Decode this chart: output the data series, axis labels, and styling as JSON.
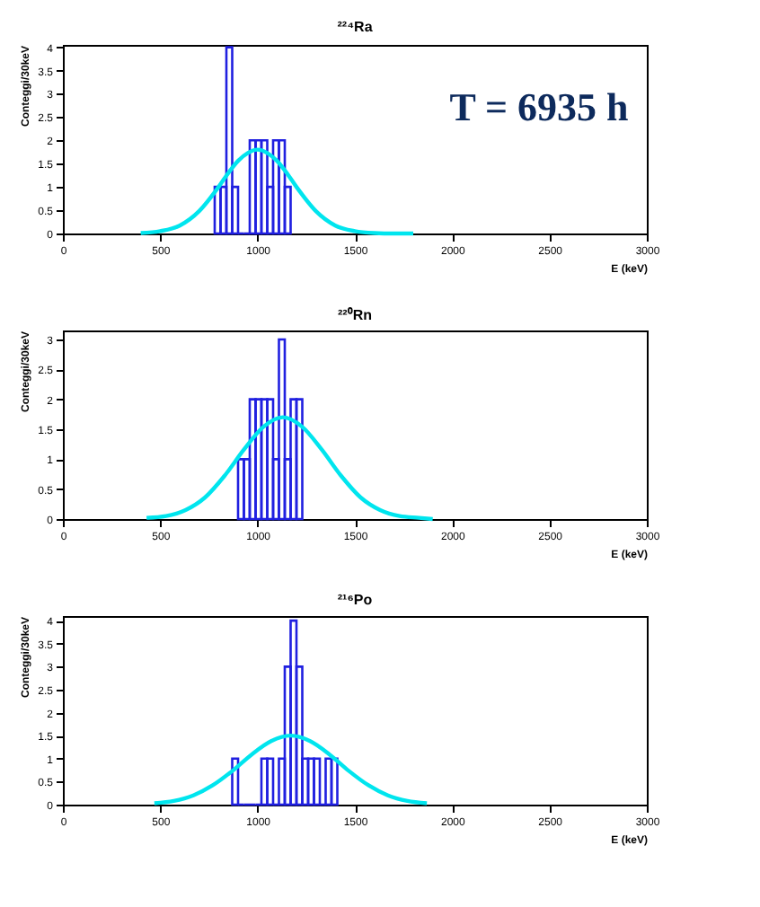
{
  "chart_data": [
    {
      "type": "histogram",
      "title": "²²⁴Ra",
      "xlabel": "E (keV)",
      "ylabel": "Conteggi/30keV",
      "color": "#2020e0",
      "bins": [
        780,
        810,
        840,
        870,
        900,
        930,
        960,
        990,
        1020,
        1050,
        1080,
        1110,
        1140,
        1170
      ],
      "values": [
        1,
        1,
        4,
        1,
        0,
        0,
        2,
        2,
        2,
        1,
        2,
        2,
        1
      ],
      "series": [
        {
          "type": "line",
          "color": "#00e5ee",
          "x": [
            400,
            500,
            600,
            700,
            800,
            850,
            900,
            950,
            1000,
            1050,
            1100,
            1150,
            1200,
            1300,
            1400,
            1500,
            1600,
            1700,
            1800
          ],
          "values": [
            0.01,
            0.05,
            0.17,
            0.48,
            1.0,
            1.3,
            1.56,
            1.73,
            1.8,
            1.73,
            1.56,
            1.3,
            1.0,
            0.48,
            0.17,
            0.05,
            0.01,
            0,
            0
          ]
        }
      ],
      "xlim": [
        0,
        3000
      ],
      "xticks": [
        0,
        500,
        1000,
        1500,
        2000,
        2500,
        3000
      ],
      "ylim": [
        0,
        4.05
      ],
      "yticks": [
        0,
        0.5,
        1,
        1.5,
        2,
        2.5,
        3,
        3.5,
        4
      ],
      "annotations": [
        "T = 6935 h"
      ]
    },
    {
      "type": "histogram",
      "title": "²²⁰Rn",
      "xlabel": "E (keV)",
      "ylabel": "Conteggi/30keV",
      "color": "#2020e0",
      "bins": [
        900,
        930,
        960,
        990,
        1020,
        1050,
        1080,
        1110,
        1140,
        1170,
        1200,
        1230
      ],
      "values": [
        1,
        1,
        2,
        2,
        2,
        2,
        1,
        3,
        1,
        2,
        2
      ],
      "series": [
        {
          "type": "line",
          "color": "#00e5ee",
          "x": [
            430,
            530,
            630,
            730,
            830,
            930,
            1030,
            1130,
            1230,
            1330,
            1430,
            1530,
            1630,
            1730,
            1830,
            1900
          ],
          "values": [
            0.02,
            0.05,
            0.15,
            0.36,
            0.72,
            1.16,
            1.54,
            1.7,
            1.54,
            1.16,
            0.72,
            0.36,
            0.15,
            0.05,
            0.02,
            0
          ]
        }
      ],
      "xlim": [
        0,
        3000
      ],
      "xticks": [
        0,
        500,
        1000,
        1500,
        2000,
        2500,
        3000
      ],
      "ylim": [
        0,
        3.15
      ],
      "yticks": [
        0,
        0.5,
        1,
        1.5,
        2,
        2.5,
        3
      ]
    },
    {
      "type": "histogram",
      "title": "²¹⁶Po",
      "xlabel": "E (keV)",
      "ylabel": "Conteggi/30keV",
      "color": "#2020e0",
      "bins": [
        870,
        900,
        930,
        960,
        990,
        1020,
        1050,
        1080,
        1110,
        1140,
        1170,
        1200,
        1230,
        1260,
        1290,
        1320,
        1350,
        1380,
        1410
      ],
      "values": [
        1,
        0,
        0,
        0,
        0,
        1,
        1,
        0,
        1,
        3,
        4,
        3,
        1,
        1,
        1,
        0,
        1,
        1
      ],
      "series": [
        {
          "type": "line",
          "color": "#00e5ee",
          "x": [
            470,
            570,
            670,
            770,
            870,
            970,
            1070,
            1170,
            1270,
            1370,
            1470,
            1570,
            1670,
            1770,
            1870
          ],
          "values": [
            0.03,
            0.08,
            0.2,
            0.42,
            0.73,
            1.09,
            1.38,
            1.5,
            1.38,
            1.09,
            0.73,
            0.42,
            0.2,
            0.08,
            0.03
          ]
        }
      ],
      "xlim": [
        0,
        3000
      ],
      "xticks": [
        0,
        500,
        1000,
        1500,
        2000,
        2500,
        3000
      ],
      "ylim": [
        0,
        4.1
      ],
      "yticks": [
        0,
        0.5,
        1,
        1.5,
        2,
        2.5,
        3,
        3.5,
        4
      ]
    }
  ]
}
